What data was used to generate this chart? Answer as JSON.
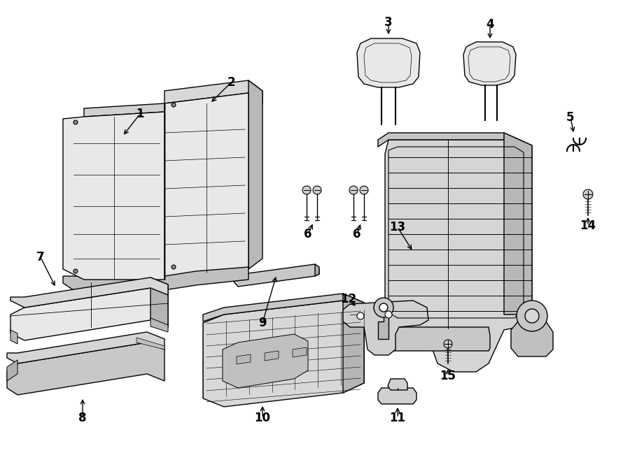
{
  "bg_color": "#ffffff",
  "line_color": "#000000",
  "fig_width": 9.0,
  "fig_height": 6.61,
  "dpi": 100,
  "gray_fill": "#e8e8e8",
  "gray_dark": "#d0d0d0",
  "gray_light": "#f0f0f0"
}
